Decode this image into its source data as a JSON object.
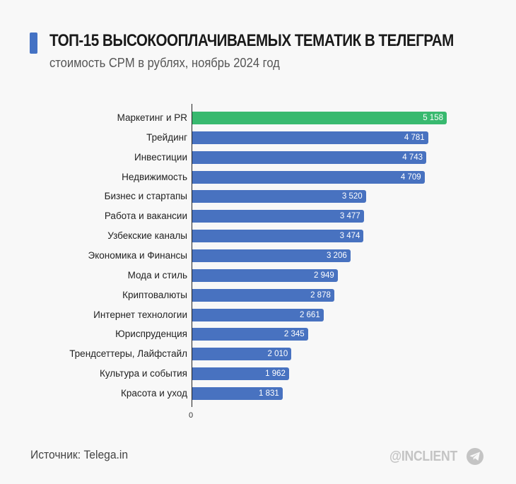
{
  "header": {
    "title": "ТОП-15 ВЫСОКООПЛАЧИВАЕМЫХ ТЕМАТИК В ТЕЛЕГРАМ",
    "subtitle": "стоимость CPM в рублях, ноябрь 2024 год"
  },
  "axis": {
    "zero_label": "0"
  },
  "footer": {
    "source": "Источник: Telega.in",
    "brand": "@INCLIENT",
    "brand_icon": "telegram-icon"
  },
  "colors": {
    "highlight": "#38b96f",
    "bar": "#4872c0",
    "accent": "#4472c4",
    "background": "#f8f8f8"
  },
  "chart_data": {
    "type": "bar",
    "orientation": "horizontal",
    "title": "ТОП-15 ВЫСОКООПЛАЧИВАЕМЫХ ТЕМАТИК В ТЕЛЕГРАМ",
    "subtitle": "стоимость CPM в рублях, ноябрь 2024 год",
    "xlabel": "",
    "ylabel": "",
    "xlim": [
      0,
      5158
    ],
    "grid": false,
    "legend": null,
    "highlighted_category": "Маркетинг и PR",
    "categories": [
      "Маркетинг и PR",
      "Трейдинг",
      "Инвестиции",
      "Недвижимость",
      "Бизнес и стартапы",
      "Работа и вакансии",
      "Узбекские каналы",
      "Экономика и Финансы",
      "Мода и стиль",
      "Криптовалюты",
      "Интернет технологии",
      "Юриспруденция",
      "Трендсеттеры, Лайфстайл",
      "Культура и события",
      "Красота и уход"
    ],
    "values": [
      5158,
      4781,
      4743,
      4709,
      3520,
      3477,
      3474,
      3206,
      2949,
      2878,
      2661,
      2345,
      2010,
      1962,
      1831
    ],
    "value_labels": [
      "5 158",
      "4 781",
      "4 743",
      "4 709",
      "3 520",
      "3 477",
      "3 474",
      "3 206",
      "2 949",
      "2 878",
      "2 661",
      "2 345",
      "2 010",
      "1 962",
      "1 831"
    ]
  }
}
